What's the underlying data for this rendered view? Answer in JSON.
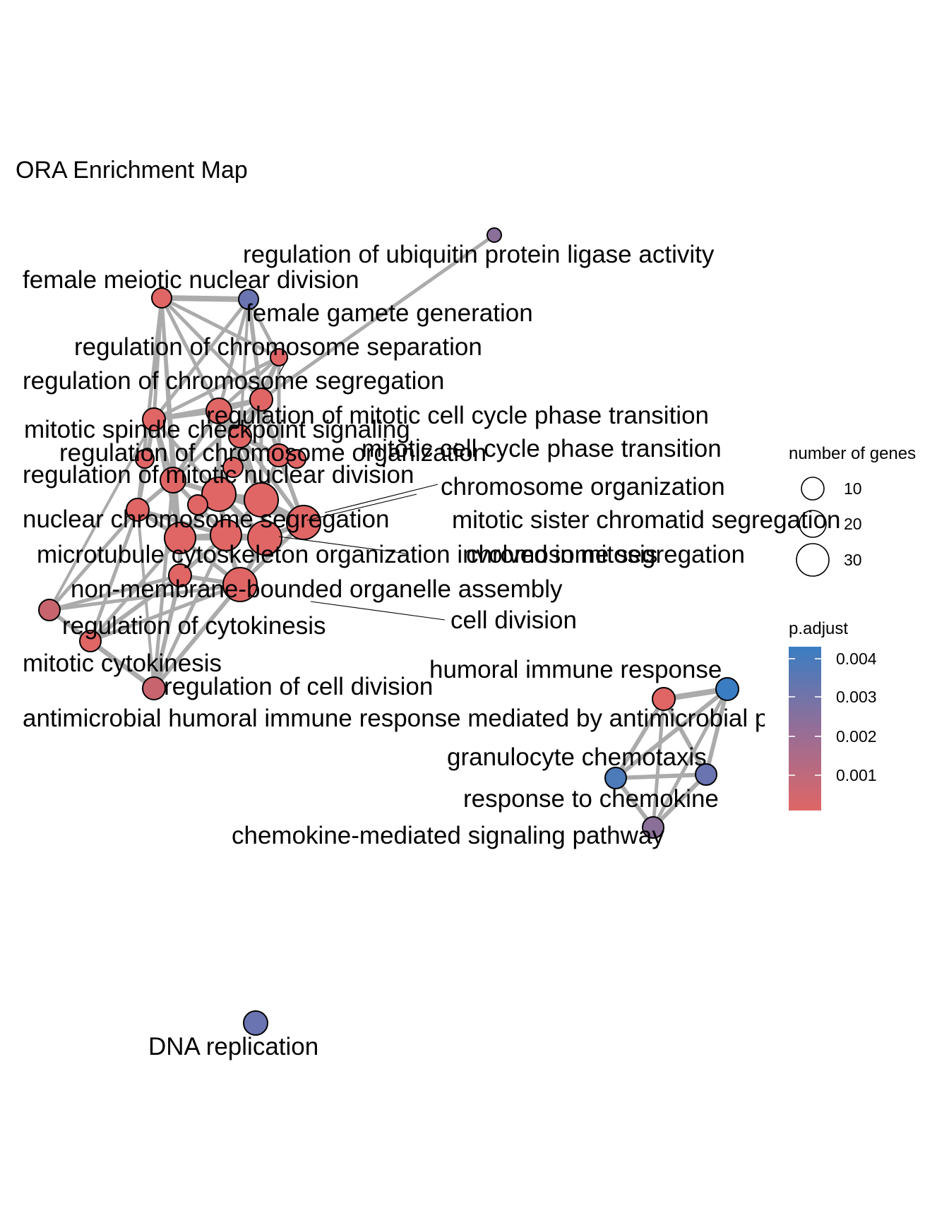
{
  "title": "ORA Enrichment Map",
  "colors": {
    "edge": "#ababab",
    "low": "#e06666",
    "high": "#3a7dc2"
  },
  "legend": {
    "size_title": "number of genes",
    "size_values": [
      10,
      20,
      30
    ],
    "color_title": "p.adjust",
    "color_ticks": [
      0.004,
      0.003,
      0.002,
      0.001
    ]
  },
  "terms": [
    {
      "label": "regulation of ubiquitin protein ligase activity",
      "color": "#8a6f99"
    },
    {
      "label": "female meiotic nuclear division",
      "color": "#e06666"
    },
    {
      "label": "female gamete generation",
      "color": "#6a74b0"
    },
    {
      "label": "regulation of chromosome separation",
      "color": "#e06666"
    },
    {
      "label": "regulation of chromosome segregation",
      "color": "#e06666"
    },
    {
      "label": "regulation of mitotic cell cycle phase transition",
      "color": "#e06666"
    },
    {
      "label": "mitotic spindle checkpoint signaling",
      "color": "#e06666"
    },
    {
      "label": "mitotic cell cycle phase transition",
      "color": "#e06666"
    },
    {
      "label": "regulation of chromosome organization",
      "color": "#e06666"
    },
    {
      "label": "regulation of mitotic nuclear division",
      "color": "#e06666"
    },
    {
      "label": "chromosome organization",
      "color": "#e06666"
    },
    {
      "label": "nuclear chromosome segregation",
      "color": "#e06666"
    },
    {
      "label": "mitotic sister chromatid segregation",
      "color": "#e06666"
    },
    {
      "label": "chromosome segregation",
      "color": "#e06666"
    },
    {
      "label": "microtubule cytoskeleton organization involved in mitosis",
      "color": "#e06666"
    },
    {
      "label": "non-membrane-bounded organelle assembly",
      "color": "#e06666"
    },
    {
      "label": "cell division",
      "color": "#e06666"
    },
    {
      "label": "regulation of cytokinesis",
      "color": "#c8646e"
    },
    {
      "label": "mitotic cytokinesis",
      "color": "#e06666"
    },
    {
      "label": "regulation of cell division",
      "color": "#c8646e"
    },
    {
      "label": "humoral immune response",
      "color": "#3a7dc2"
    },
    {
      "label": "antimicrobial humoral immune response mediated by antimicrobial peptide",
      "color": "#e06666"
    },
    {
      "label": "granulocyte chemotaxis",
      "color": "#6a74b0"
    },
    {
      "label": "response to chemokine",
      "color": "#4d7ab9"
    },
    {
      "label": "chemokine-mediated signaling pathway",
      "color": "#8a6f99"
    },
    {
      "label": "DNA replication",
      "color": "#6a74b0"
    }
  ]
}
